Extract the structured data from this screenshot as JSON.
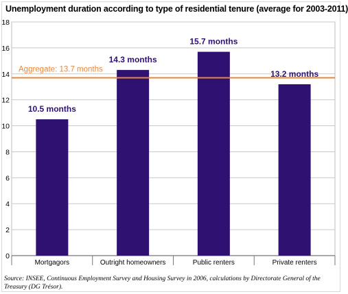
{
  "chart_data": {
    "type": "bar",
    "title": "Unemployment duration according to type of residential tenure (average for 2003-2011)",
    "categories": [
      "Mortgagors",
      "Outright homeowners",
      "Public renters",
      "Private renters"
    ],
    "values": [
      10.5,
      14.3,
      15.7,
      13.2
    ],
    "data_labels": [
      "10.5 months",
      "14.3 months",
      "15.7 months",
      "13.2 months"
    ],
    "ylim": [
      0,
      18
    ],
    "yticks": [
      0,
      2,
      4,
      6,
      8,
      10,
      12,
      14,
      16,
      18
    ],
    "grid": "horizontal",
    "bar_color": "#2e1170",
    "label_color": "#2e1170",
    "reference_line": {
      "value": 13.7,
      "label": "Aggregate: 13.7 months",
      "color": "#e8873a"
    },
    "source": "Source: INSEE, Continuous Employment Survey and Housing Survey in 2006, calculations by Directorate General of the Treasury (DG Trésor)."
  }
}
